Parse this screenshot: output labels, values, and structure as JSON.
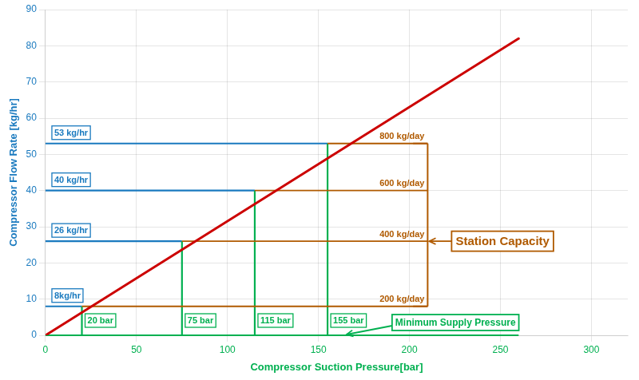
{
  "chart_data": {
    "type": "line",
    "xlabel": "Compressor Suction Pressure[bar]",
    "ylabel": "Compressor Flow Rate [kg/hr]",
    "xlim": [
      0,
      320
    ],
    "ylim": [
      0,
      90
    ],
    "xticks": [
      0,
      50,
      100,
      150,
      200,
      250,
      300
    ],
    "yticks": [
      0,
      10,
      20,
      30,
      40,
      50,
      60,
      70,
      80,
      90
    ],
    "grid": true,
    "axis_colors": {
      "x": "#00b050",
      "y": "#1a7abf"
    },
    "series": [
      {
        "x": [
          0,
          260
        ],
        "values": [
          0,
          82
        ],
        "color": "#cc0000"
      }
    ],
    "horizontal_lines": [
      {
        "y": 8,
        "x_start": 0,
        "x_end": 20,
        "label": "8kg/hr",
        "color": "#1a7abf"
      },
      {
        "y": 26,
        "x_start": 0,
        "x_end": 75,
        "label": "26 kg/hr",
        "color": "#1a7abf"
      },
      {
        "y": 40,
        "x_start": 0,
        "x_end": 115,
        "label": "40 kg/hr",
        "color": "#1a7abf"
      },
      {
        "y": 53,
        "x_start": 0,
        "x_end": 155,
        "label": "53 kg/hr",
        "color": "#1a7abf"
      }
    ],
    "vertical_lines": [
      {
        "x": 20,
        "y_bottom": 0,
        "y_top": 8,
        "label": "20 bar",
        "color": "#00b050"
      },
      {
        "x": 75,
        "y_bottom": 0,
        "y_top": 26,
        "label": "75 bar",
        "color": "#00b050"
      },
      {
        "x": 115,
        "y_bottom": 0,
        "y_top": 40,
        "label": "115 bar",
        "color": "#00b050"
      },
      {
        "x": 155,
        "y_bottom": 0,
        "y_top": 53,
        "label": "155 bar",
        "color": "#00b050"
      }
    ],
    "baseline": {
      "y": 0,
      "x_start": 0,
      "x_end": 260,
      "color": "#00b050"
    },
    "capacity_lines": [
      {
        "y": 8,
        "x_start": 20,
        "x_end": 210,
        "label": "200 kg/day",
        "color": "#b05a00"
      },
      {
        "y": 26,
        "x_start": 75,
        "x_end": 210,
        "label": "400 kg/day",
        "color": "#b05a00"
      },
      {
        "y": 40,
        "x_start": 115,
        "x_end": 210,
        "label": "600 kg/day",
        "color": "#b05a00"
      },
      {
        "y": 53,
        "x_start": 155,
        "x_end": 210,
        "label": "800 kg/day",
        "color": "#b05a00"
      }
    ],
    "bracket": {
      "x": 210,
      "y_bottom": 8,
      "y_top": 53,
      "tick_length": 8,
      "color": "#b05a00"
    },
    "callouts": [
      {
        "text": "Station Capacity",
        "x": 210,
        "y": 26,
        "color": "#b05a00"
      },
      {
        "text": "Minimum Supply Pressure",
        "x": 165,
        "y": 0,
        "color": "#00b050"
      }
    ]
  }
}
